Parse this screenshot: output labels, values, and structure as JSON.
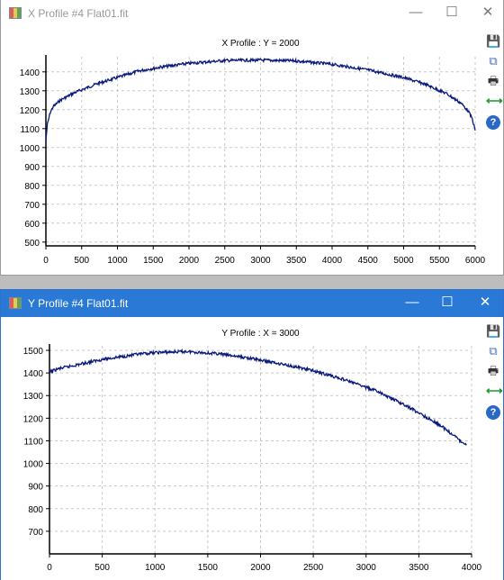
{
  "windows": [
    {
      "title": "X Profile #4 Flat01.fit",
      "controls": {
        "minimize": "—",
        "maximize": "☐",
        "close": "✕"
      },
      "chart_data": {
        "type": "line",
        "title": "X Profile :   Y = 2000",
        "xlabel": "",
        "ylabel": "",
        "xlim": [
          0,
          6000
        ],
        "ylim": [
          480,
          1480
        ],
        "xticks": [
          0,
          500,
          1000,
          1500,
          2000,
          2500,
          3000,
          3500,
          4000,
          4500,
          5000,
          5500,
          6000
        ],
        "xtick_labels": [
          "0",
          "500",
          "1000",
          "1500",
          "2000",
          "2500",
          "3000",
          "3500",
          "4000",
          "4500",
          "5000",
          "5500",
          "6000"
        ],
        "yticks": [
          500,
          600,
          700,
          800,
          900,
          1000,
          1100,
          1200,
          1300,
          1400
        ],
        "ytick_labels": [
          "500",
          "600",
          "700",
          "800",
          "900",
          "1000",
          "1100",
          "1200",
          "1300",
          "1400"
        ],
        "grid": true,
        "series": [
          {
            "color": "#0a1a7a",
            "x": [
              0,
              20,
              60,
              100,
              200,
              400,
              700,
              1000,
              1300,
              1600,
              2000,
              2500,
              3000,
              3500,
              4000,
              4500,
              5000,
              5300,
              5600,
              5800,
              5900,
              5960,
              6000
            ],
            "y": [
              1040,
              1120,
              1185,
              1215,
              1250,
              1290,
              1335,
              1370,
              1405,
              1425,
              1445,
              1460,
              1462,
              1458,
              1440,
              1410,
              1370,
              1335,
              1285,
              1235,
              1195,
              1150,
              1090
            ]
          }
        ]
      }
    },
    {
      "title": "Y Profile #4 Flat01.fit",
      "controls": {
        "minimize": "—",
        "maximize": "☐",
        "close": "✕"
      },
      "chart_data": {
        "type": "line",
        "title": "Y Profile :   X = 3000",
        "xlabel": "",
        "ylabel": "",
        "xlim": [
          0,
          4000
        ],
        "ylim": [
          600,
          1520
        ],
        "xticks": [
          0,
          500,
          1000,
          1500,
          2000,
          2500,
          3000,
          3500,
          4000
        ],
        "xtick_labels": [
          "0",
          "500",
          "1000",
          "1500",
          "2000",
          "2500",
          "3000",
          "3500",
          "4000"
        ],
        "yticks": [
          700,
          800,
          900,
          1000,
          1100,
          1200,
          1300,
          1400,
          1500
        ],
        "ytick_labels": [
          "700",
          "800",
          "900",
          "1000",
          "1100",
          "1200",
          "1300",
          "1400",
          "1500"
        ],
        "grid": true,
        "series": [
          {
            "color": "#0a1a7a",
            "x": [
              0,
              10,
              30,
              100,
              300,
              500,
              800,
              1000,
              1300,
              1600,
              1900,
              2200,
              2500,
              2800,
              3100,
              3400,
              3700,
              3950
            ],
            "y": [
              1400,
              1405,
              1410,
              1420,
              1440,
              1460,
              1480,
              1490,
              1495,
              1485,
              1465,
              1440,
              1410,
              1370,
              1320,
              1250,
              1170,
              1080
            ]
          }
        ]
      }
    }
  ],
  "toolbar": {
    "items": [
      {
        "name": "save-icon",
        "glyph": "💾"
      },
      {
        "name": "copy-icon",
        "glyph": "⧉"
      },
      {
        "name": "print-icon",
        "glyph": "🖶"
      },
      {
        "name": "resize-arrows-icon",
        "glyph": "⟷"
      },
      {
        "name": "help-icon",
        "glyph": "?"
      }
    ]
  },
  "colors": {
    "active_titlebar": "#2b79d6",
    "plot_line": "#0a1a7a",
    "grid": "#c8c8c8"
  }
}
